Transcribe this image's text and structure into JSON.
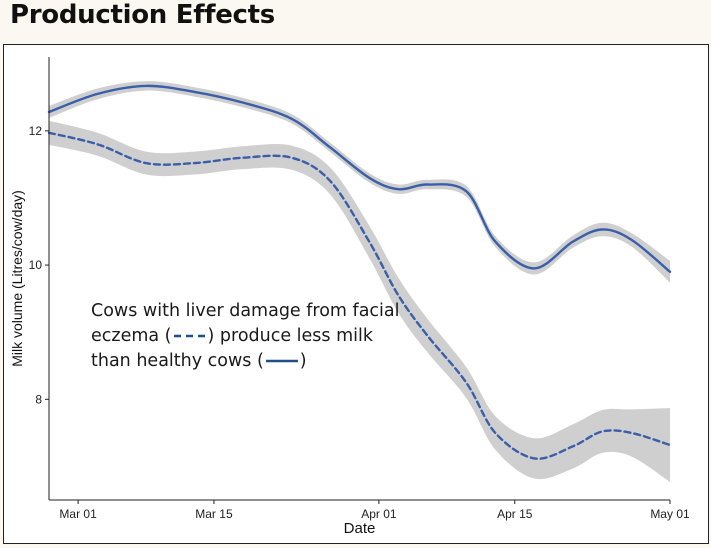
{
  "page_title": "Production Effects",
  "chart_data": {
    "type": "line",
    "xlabel": "Date",
    "ylabel": "Milk volume (Litres/cow/day)",
    "x_ticks": [
      "Mar 01",
      "Mar 15",
      "Apr 01",
      "Apr 15",
      "May 01"
    ],
    "x_tick_dates": [
      "2016-03-01",
      "2016-03-15",
      "2016-04-01",
      "2016-04-15",
      "2016-05-01"
    ],
    "y_ticks": [
      8,
      10,
      12
    ],
    "xlim": [
      "2016-02-27",
      "2016-05-01"
    ],
    "ylim": [
      6.5,
      13.1
    ],
    "grid": false,
    "confidence_band": true,
    "colors": {
      "line": "#3a5ea8",
      "band": "#cfcfcf",
      "legend_swatch": "#1f4f8a"
    },
    "series": [
      {
        "style": "solid",
        "x": [
          "2016-02-27",
          "2016-03-03",
          "2016-03-08",
          "2016-03-13",
          "2016-03-18",
          "2016-03-23",
          "2016-03-27",
          "2016-03-31",
          "2016-04-03",
          "2016-04-06",
          "2016-04-10",
          "2016-04-13",
          "2016-04-17",
          "2016-04-21",
          "2016-04-24",
          "2016-04-27",
          "2016-05-01"
        ],
        "y": [
          12.28,
          12.55,
          12.67,
          12.58,
          12.42,
          12.18,
          11.75,
          11.3,
          11.13,
          11.2,
          11.1,
          10.35,
          9.95,
          10.35,
          10.53,
          10.38,
          9.9
        ],
        "band_halfwidth": [
          0.09,
          0.08,
          0.07,
          0.07,
          0.07,
          0.07,
          0.07,
          0.07,
          0.07,
          0.07,
          0.08,
          0.08,
          0.09,
          0.09,
          0.1,
          0.1,
          0.16
        ]
      },
      {
        "style": "dashed",
        "x": [
          "2016-02-27",
          "2016-03-03",
          "2016-03-08",
          "2016-03-13",
          "2016-03-18",
          "2016-03-23",
          "2016-03-27",
          "2016-03-31",
          "2016-04-03",
          "2016-04-06",
          "2016-04-10",
          "2016-04-13",
          "2016-04-17",
          "2016-04-21",
          "2016-04-24",
          "2016-04-27",
          "2016-05-01"
        ],
        "y": [
          11.97,
          11.8,
          11.52,
          11.52,
          11.6,
          11.6,
          11.25,
          10.35,
          9.55,
          8.95,
          8.25,
          7.5,
          7.12,
          7.3,
          7.52,
          7.5,
          7.32
        ],
        "band_halfwidth": [
          0.18,
          0.17,
          0.17,
          0.17,
          0.17,
          0.18,
          0.2,
          0.24,
          0.26,
          0.25,
          0.23,
          0.25,
          0.3,
          0.33,
          0.32,
          0.35,
          0.55
        ]
      }
    ]
  },
  "annotation": {
    "line1": "Cows with liver damage from facial",
    "line2_pre": "eczema (",
    "line2_post": ") produce less milk",
    "line3_pre": "than healthy cows (",
    "line3_post": ")"
  }
}
